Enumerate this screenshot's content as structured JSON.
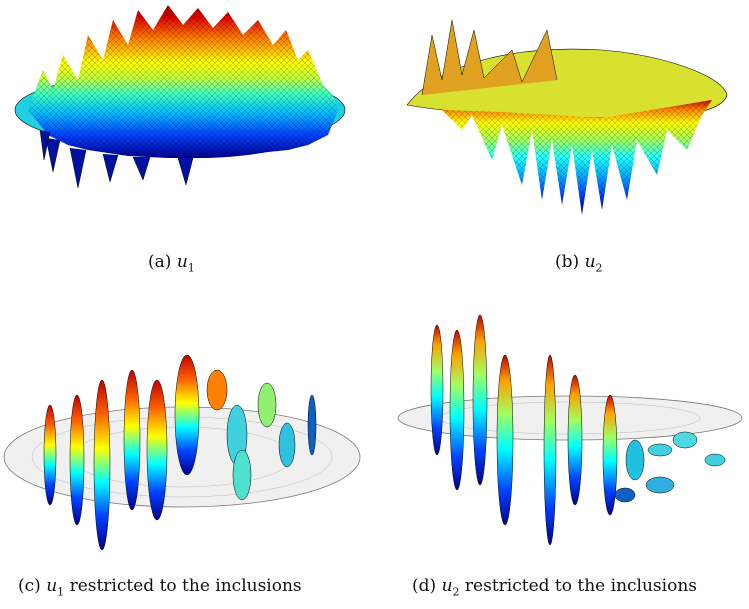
{
  "figure": {
    "panels": [
      {
        "id": "a",
        "label": "(a)",
        "variable": "u",
        "subscript": "1",
        "suffix": ""
      },
      {
        "id": "b",
        "label": "(b)",
        "variable": "u",
        "subscript": "2",
        "suffix": ""
      },
      {
        "id": "c",
        "label": "(c)",
        "variable": "u",
        "subscript": "1",
        "suffix": "restricted to the inclusions"
      },
      {
        "id": "d",
        "label": "(d)",
        "variable": "u",
        "subscript": "2",
        "suffix": "restricted to the inclusions"
      }
    ],
    "colormap": [
      "#00008f",
      "#0000ff",
      "#0080ff",
      "#00ffff",
      "#80ff80",
      "#ffff00",
      "#ff8000",
      "#ff0000",
      "#800000"
    ]
  }
}
